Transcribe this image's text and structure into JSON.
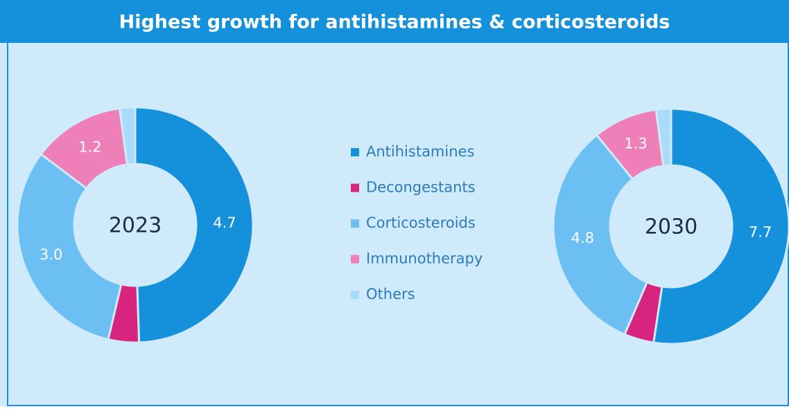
{
  "title": "Highest growth for antihistamines & corticosteroids",
  "chart_data": [
    {
      "type": "donut",
      "title": "2023",
      "categories": [
        "Antihistamines",
        "Decongestants",
        "Corticosteroids",
        "Immunotherapy",
        "Others"
      ],
      "values": [
        4.7,
        0.4,
        3.0,
        1.2,
        0.2
      ],
      "value_labels": [
        "4.7",
        null,
        "3.0",
        "1.2",
        null
      ],
      "colors": [
        "#1591dc",
        "#d6247f",
        "#6cbff3",
        "#ee7fb8",
        "#a9dcf8"
      ]
    },
    {
      "type": "donut",
      "title": "2030",
      "categories": [
        "Antihistamines",
        "Decongestants",
        "Corticosteroids",
        "Immunotherapy",
        "Others"
      ],
      "values": [
        7.7,
        0.6,
        4.8,
        1.3,
        0.3
      ],
      "value_labels": [
        "7.7",
        null,
        "4.8",
        "1.3",
        null
      ],
      "colors": [
        "#1591dc",
        "#d6247f",
        "#6cbff3",
        "#ee7fb8",
        "#a9dcf8"
      ]
    }
  ]
}
